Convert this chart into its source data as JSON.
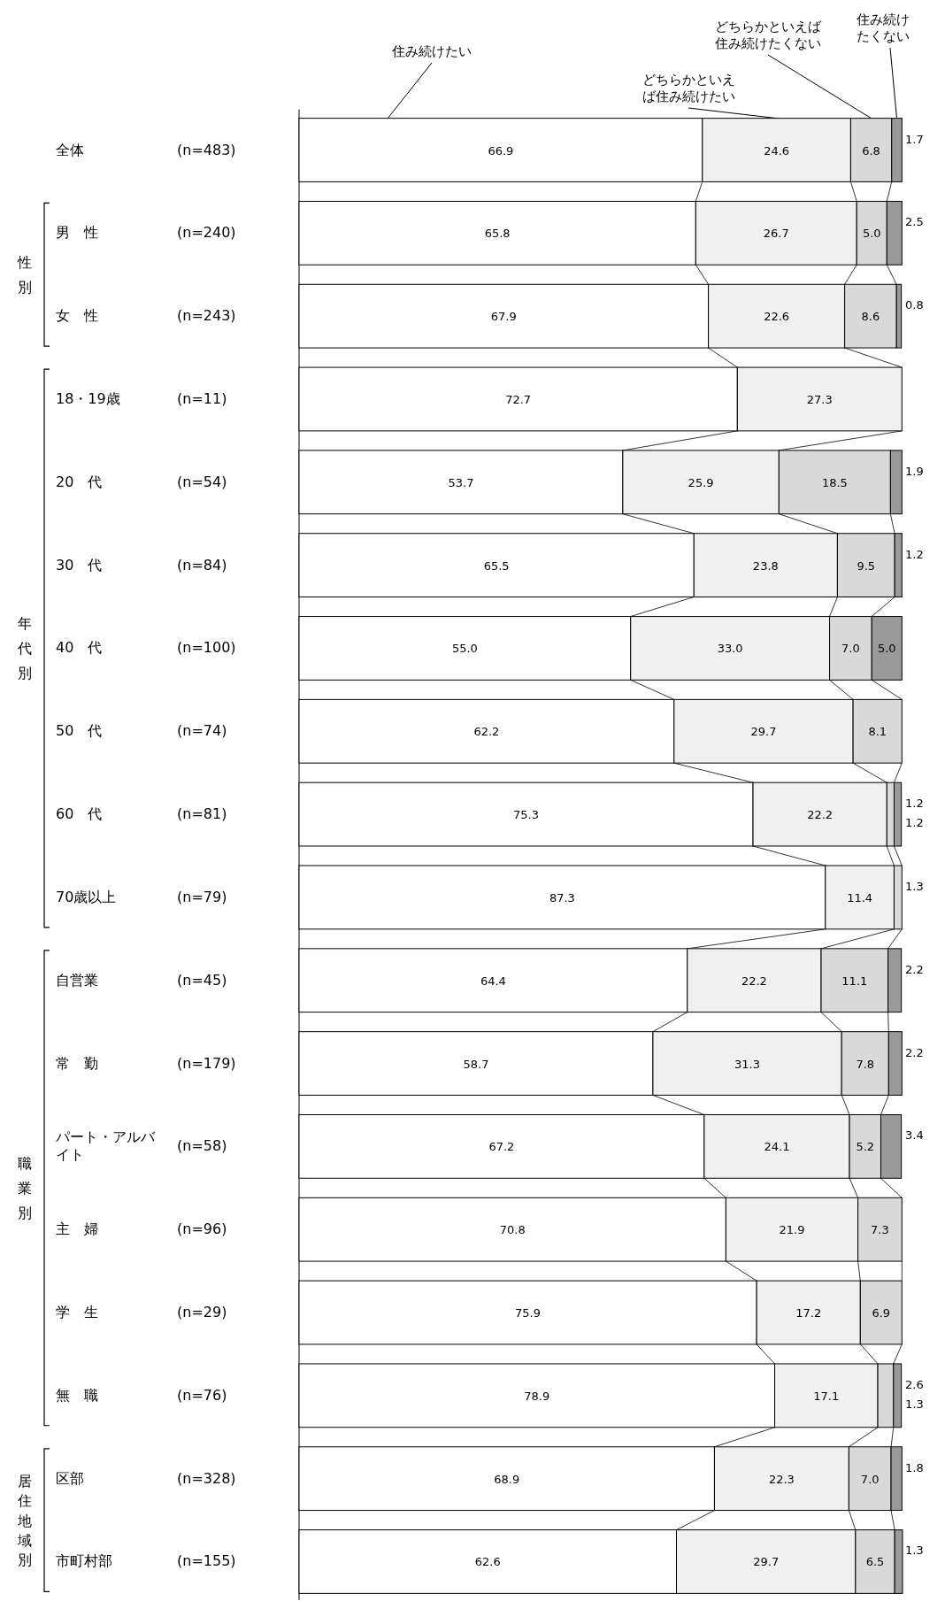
{
  "chart_data": {
    "type": "bar",
    "orientation": "horizontal",
    "stacked": true,
    "legend": "top",
    "categories": [
      "全体",
      "男　性",
      "女　性",
      "18・19歳",
      "20　代",
      "30　代",
      "40　代",
      "50　代",
      "60　代",
      "70歳以上",
      "自営業",
      "常　勤",
      "パート・アルバイト",
      "主　婦",
      "学　生",
      "無　職",
      "区部",
      "市町村部"
    ],
    "y2_categories": [
      "(n=483)",
      "(n=240)",
      "(n=243)",
      "(n=11)",
      "(n=54)",
      "(n=84)",
      "(n=100)",
      "(n=74)",
      "(n=81)",
      "(n=79)",
      "(n=45)",
      "(n=179)",
      "(n=58)",
      "(n=96)",
      "(n=29)",
      "(n=76)",
      "(n=328)",
      "(n=155)"
    ],
    "series": [
      {
        "name": "住み続けたい",
        "color": "#ffffff",
        "values": [
          66.9,
          65.8,
          67.9,
          72.7,
          53.7,
          65.5,
          55.0,
          62.2,
          75.3,
          87.3,
          64.4,
          58.7,
          67.2,
          70.8,
          75.9,
          78.9,
          68.9,
          62.6
        ],
        "value_labels": [
          "66.9",
          "65.8",
          "67.9",
          "72.7",
          "53.7",
          "65.5",
          "55.0",
          "62.2",
          "75.3",
          "87.3",
          "64.4",
          "58.7",
          "67.2",
          "70.8",
          "75.9",
          "78.9",
          "68.9",
          "62.6"
        ]
      },
      {
        "name": "どちらかといえば住み続けたい",
        "color": "#f0f0f0",
        "values": [
          24.6,
          26.7,
          22.6,
          27.3,
          25.9,
          23.8,
          33.0,
          29.7,
          22.2,
          11.4,
          22.2,
          31.3,
          24.1,
          21.9,
          17.2,
          17.1,
          22.3,
          29.7
        ],
        "value_labels": [
          "24.6",
          "26.7",
          "22.6",
          "27.3",
          "25.9",
          "23.8",
          "33.0",
          "29.7",
          "22.2",
          "11.4",
          "22.2",
          "31.3",
          "24.1",
          "21.9",
          "17.2",
          "17.1",
          "22.3",
          "29.7"
        ]
      },
      {
        "name": "どちらかといえば住み続けたくない",
        "color": "#d9d9d9",
        "values": [
          6.8,
          5.0,
          8.6,
          null,
          18.5,
          9.5,
          7.0,
          8.1,
          1.2,
          1.3,
          11.1,
          7.8,
          5.2,
          7.3,
          6.9,
          2.6,
          7.0,
          6.5
        ],
        "value_labels": [
          "6.8",
          "5.0",
          "8.6",
          null,
          "18.5",
          "9.5",
          "7.0",
          "8.1",
          "1.2",
          "1.3",
          "11.1",
          "7.8",
          "5.2",
          "7.3",
          "6.9",
          "2.6",
          "7.0",
          "6.5"
        ]
      },
      {
        "name": "住み続けたくない",
        "color": "#9a9a9a",
        "values": [
          1.7,
          2.5,
          0.8,
          null,
          1.9,
          1.2,
          5.0,
          null,
          1.2,
          null,
          2.2,
          2.2,
          3.4,
          null,
          null,
          1.3,
          1.8,
          1.3
        ],
        "value_labels": [
          "1.7",
          "2.5",
          "0.8",
          null,
          "1.9",
          "1.2",
          "5.0",
          null,
          "1.2",
          null,
          "2.2",
          "2.2",
          "3.4",
          null,
          null,
          "1.3",
          "1.8",
          "1.3"
        ]
      }
    ],
    "annotations": [
      "性別",
      "年代別",
      "職業別",
      "居住地域別"
    ]
  }
}
